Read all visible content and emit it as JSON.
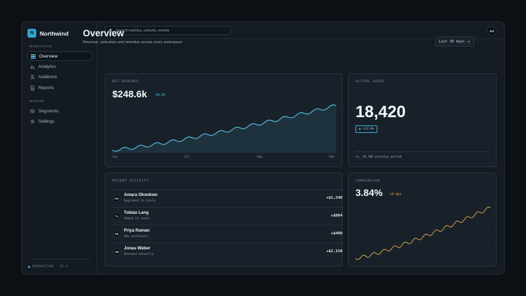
{
  "app": {
    "logo_letter": "N",
    "name": "Northwind"
  },
  "sidebar": {
    "workspace_heading": "WORKSPACE",
    "workspace_items": [
      {
        "label": "Overview",
        "icon": "grid-icon",
        "active": true
      },
      {
        "label": "Analytics",
        "icon": "bar-chart-icon"
      },
      {
        "label": "Audience",
        "icon": "user-icon"
      },
      {
        "label": "Reports",
        "icon": "document-icon"
      }
    ],
    "manage_heading": "MANAGE",
    "manage_items": [
      {
        "label": "Segments",
        "icon": "layers-icon"
      },
      {
        "label": "Settings",
        "icon": "gear-icon"
      }
    ],
    "footer": "PRODUCTION · V2.4"
  },
  "topbar": {
    "search_placeholder": "Search metrics, cohorts, events",
    "avatar_initials": "AO"
  },
  "header": {
    "title": "Overview",
    "subtitle": "Revenue, activation and retention across every workspace",
    "range_label": "Last 30 days"
  },
  "net_revenue": {
    "label": "NET REVENUE",
    "value": "$248.6k",
    "delta": "+8.2%",
    "x_ticks": [
      "Jun",
      "Jul",
      "Aug",
      "Sep"
    ]
  },
  "active_users": {
    "label": "ACTIVE USERS",
    "value": "18,420",
    "delta": "▲ +12.4%",
    "footnote": "vs. 16,380 previous period"
  },
  "recent_activity": {
    "label": "RECENT ACTIVITY",
    "rows": [
      {
        "initials": "AO",
        "name": "Amara Okonkwo",
        "desc": "Upgraded to Scale",
        "amount": "+$1,240"
      },
      {
        "initials": "TL",
        "name": "Tobias Lang",
        "desc": "Added 12 seats",
        "amount": "+$864"
      },
      {
        "initials": "PR",
        "name": "Priya Raman",
        "desc": "New workspace",
        "amount": "+$480"
      },
      {
        "initials": "JW",
        "name": "Jonas Weber",
        "desc": "Renewed annually",
        "amount": "+$2,150"
      }
    ]
  },
  "conversion": {
    "label": "CONVERSION",
    "value": "3.84%",
    "delta": "+0.4pt"
  },
  "colors": {
    "accent": "#3bb3d8",
    "revenue_line": "#5cc3e6",
    "conversion_line": "#d9a24a",
    "delta_up": "#4fc2e6",
    "delta_warm": "#d9a24a"
  }
}
